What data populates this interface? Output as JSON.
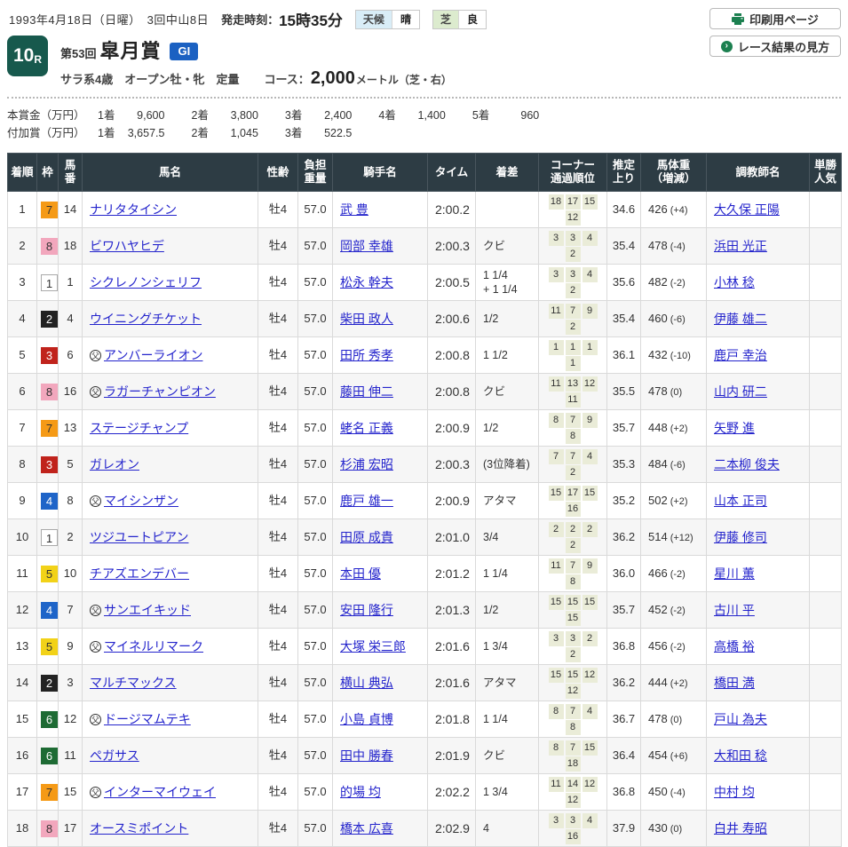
{
  "page": {
    "date_line": "1993年4月18日（日曜）　3回中山8日",
    "start_label": "発走時刻：",
    "start_time": "15時35分",
    "weather": {
      "label": "天候",
      "value": "晴"
    },
    "track": {
      "label": "芝",
      "value": "良"
    },
    "buttons": {
      "print": "印刷用ページ",
      "guide": "レース結果の見方"
    }
  },
  "race": {
    "number": "10",
    "number_suffix": "R",
    "edition": "第53回",
    "name": "皐月賞",
    "grade": "GI",
    "conditions": "サラ系4歳　オープン牡・牝　定量",
    "course_label": "コース：",
    "distance": "2,000",
    "course_detail": "メートル（芝・右）"
  },
  "prize": {
    "main_label": "本賞金（万円）",
    "main": [
      {
        "place": "1着",
        "amount": "9,600"
      },
      {
        "place": "2着",
        "amount": "3,800"
      },
      {
        "place": "3着",
        "amount": "2,400"
      },
      {
        "place": "4着",
        "amount": "1,400"
      },
      {
        "place": "5着",
        "amount": "960"
      }
    ],
    "added_label": "付加賞（万円）",
    "added": [
      {
        "place": "1着",
        "amount": "3,657.5"
      },
      {
        "place": "2着",
        "amount": "1,045"
      },
      {
        "place": "3着",
        "amount": "522.5"
      }
    ]
  },
  "frame_colors": {
    "1": {
      "bg": "#ffffff",
      "fg": "#333333",
      "border": "#aaaaaa"
    },
    "2": {
      "bg": "#222222",
      "fg": "#ffffff"
    },
    "3": {
      "bg": "#c0231c",
      "fg": "#ffffff"
    },
    "4": {
      "bg": "#1e64c8",
      "fg": "#ffffff"
    },
    "5": {
      "bg": "#f2d218",
      "fg": "#333333"
    },
    "6": {
      "bg": "#1e6b34",
      "fg": "#ffffff"
    },
    "7": {
      "bg": "#f59a16",
      "fg": "#333333"
    },
    "8": {
      "bg": "#f2a7bd",
      "fg": "#333333"
    }
  },
  "table": {
    "columns": [
      "着順",
      "枠",
      "馬\n番",
      "馬名",
      "性齢",
      "負担\n重量",
      "騎手名",
      "タイム",
      "着差",
      "コーナー\n通過順位",
      "推定\n上り",
      "馬体重\n（増減）",
      "調教師名",
      "単勝\n人気"
    ],
    "rows": [
      {
        "pos": "1",
        "frame": "7",
        "num": "14",
        "mark": "",
        "name": "ナリタタイシン",
        "sex_age": "牡4",
        "weight": "57.0",
        "jockey": "武 豊",
        "time": "2:00.2",
        "margin": "",
        "corners": [
          "18",
          "17",
          "15",
          "12"
        ],
        "last3f": "34.6",
        "body": "426",
        "diff": "(+4)",
        "trainer": "大久保 正陽",
        "pop": ""
      },
      {
        "pos": "2",
        "frame": "8",
        "num": "18",
        "mark": "",
        "name": "ビワハヤヒデ",
        "sex_age": "牡4",
        "weight": "57.0",
        "jockey": "岡部 幸雄",
        "time": "2:00.3",
        "margin": "クビ",
        "corners": [
          "3",
          "3",
          "4",
          "2"
        ],
        "last3f": "35.4",
        "body": "478",
        "diff": "(-4)",
        "trainer": "浜田 光正",
        "pop": ""
      },
      {
        "pos": "3",
        "frame": "1",
        "num": "1",
        "mark": "",
        "name": "シクレノンシェリフ",
        "sex_age": "牡4",
        "weight": "57.0",
        "jockey": "松永 幹夫",
        "time": "2:00.5",
        "margin": "1 1/4\n+ 1 1/4",
        "corners": [
          "3",
          "3",
          "4",
          "2"
        ],
        "last3f": "35.6",
        "body": "482",
        "diff": "(-2)",
        "trainer": "小林 稔",
        "pop": ""
      },
      {
        "pos": "4",
        "frame": "2",
        "num": "4",
        "mark": "",
        "name": "ウイニングチケット",
        "sex_age": "牡4",
        "weight": "57.0",
        "jockey": "柴田 政人",
        "time": "2:00.6",
        "margin": "1/2",
        "corners": [
          "11",
          "7",
          "9",
          "2"
        ],
        "last3f": "35.4",
        "body": "460",
        "diff": "(-6)",
        "trainer": "伊藤 雄二",
        "pop": ""
      },
      {
        "pos": "5",
        "frame": "3",
        "num": "6",
        "mark": "父",
        "name": "アンバーライオン",
        "sex_age": "牡4",
        "weight": "57.0",
        "jockey": "田所 秀孝",
        "time": "2:00.8",
        "margin": "1 1/2",
        "corners": [
          "1",
          "1",
          "1",
          "1"
        ],
        "last3f": "36.1",
        "body": "432",
        "diff": "(-10)",
        "trainer": "鹿戸 幸治",
        "pop": ""
      },
      {
        "pos": "6",
        "frame": "8",
        "num": "16",
        "mark": "父",
        "name": "ラガーチャンピオン",
        "sex_age": "牡4",
        "weight": "57.0",
        "jockey": "藤田 伸二",
        "time": "2:00.8",
        "margin": "クビ",
        "corners": [
          "11",
          "13",
          "12",
          "11"
        ],
        "last3f": "35.5",
        "body": "478",
        "diff": "(0)",
        "trainer": "山内 研二",
        "pop": ""
      },
      {
        "pos": "7",
        "frame": "7",
        "num": "13",
        "mark": "",
        "name": "ステージチャンプ",
        "sex_age": "牡4",
        "weight": "57.0",
        "jockey": "蛯名 正義",
        "time": "2:00.9",
        "margin": "1/2",
        "corners": [
          "8",
          "7",
          "9",
          "8"
        ],
        "last3f": "35.7",
        "body": "448",
        "diff": "(+2)",
        "trainer": "矢野 進",
        "pop": ""
      },
      {
        "pos": "8",
        "frame": "3",
        "num": "5",
        "mark": "",
        "name": "ガレオン",
        "sex_age": "牡4",
        "weight": "57.0",
        "jockey": "杉浦 宏昭",
        "time": "2:00.3",
        "margin": "(3位降着)",
        "corners": [
          "7",
          "7",
          "4",
          "2"
        ],
        "last3f": "35.3",
        "body": "484",
        "diff": "(-6)",
        "trainer": "二本柳 俊夫",
        "pop": ""
      },
      {
        "pos": "9",
        "frame": "4",
        "num": "8",
        "mark": "父",
        "name": "マイシンザン",
        "sex_age": "牡4",
        "weight": "57.0",
        "jockey": "鹿戸 雄一",
        "time": "2:00.9",
        "margin": "アタマ",
        "corners": [
          "15",
          "17",
          "15",
          "16"
        ],
        "last3f": "35.2",
        "body": "502",
        "diff": "(+2)",
        "trainer": "山本 正司",
        "pop": ""
      },
      {
        "pos": "10",
        "frame": "1",
        "num": "2",
        "mark": "",
        "name": "ツジユートピアン",
        "sex_age": "牡4",
        "weight": "57.0",
        "jockey": "田原 成貴",
        "time": "2:01.0",
        "margin": "3/4",
        "corners": [
          "2",
          "2",
          "2",
          "2"
        ],
        "last3f": "36.2",
        "body": "514",
        "diff": "(+12)",
        "trainer": "伊藤 修司",
        "pop": ""
      },
      {
        "pos": "11",
        "frame": "5",
        "num": "10",
        "mark": "",
        "name": "チアズエンデバー",
        "sex_age": "牡4",
        "weight": "57.0",
        "jockey": "本田 優",
        "time": "2:01.2",
        "margin": "1 1/4",
        "corners": [
          "11",
          "7",
          "9",
          "8"
        ],
        "last3f": "36.0",
        "body": "466",
        "diff": "(-2)",
        "trainer": "星川 薫",
        "pop": ""
      },
      {
        "pos": "12",
        "frame": "4",
        "num": "7",
        "mark": "父",
        "name": "サンエイキッド",
        "sex_age": "牡4",
        "weight": "57.0",
        "jockey": "安田 隆行",
        "time": "2:01.3",
        "margin": "1/2",
        "corners": [
          "15",
          "15",
          "15",
          "15"
        ],
        "last3f": "35.7",
        "body": "452",
        "diff": "(-2)",
        "trainer": "古川 平",
        "pop": ""
      },
      {
        "pos": "13",
        "frame": "5",
        "num": "9",
        "mark": "父",
        "name": "マイネルリマーク",
        "sex_age": "牡4",
        "weight": "57.0",
        "jockey": "大塚 栄三郎",
        "time": "2:01.6",
        "margin": "1 3/4",
        "corners": [
          "3",
          "3",
          "2",
          "2"
        ],
        "last3f": "36.8",
        "body": "456",
        "diff": "(-2)",
        "trainer": "高橋 裕",
        "pop": ""
      },
      {
        "pos": "14",
        "frame": "2",
        "num": "3",
        "mark": "",
        "name": "マルチマックス",
        "sex_age": "牡4",
        "weight": "57.0",
        "jockey": "横山 典弘",
        "time": "2:01.6",
        "margin": "アタマ",
        "corners": [
          "15",
          "15",
          "12",
          "12"
        ],
        "last3f": "36.2",
        "body": "444",
        "diff": "(+2)",
        "trainer": "橋田 満",
        "pop": ""
      },
      {
        "pos": "15",
        "frame": "6",
        "num": "12",
        "mark": "父",
        "name": "ドージマムテキ",
        "sex_age": "牡4",
        "weight": "57.0",
        "jockey": "小島 貞博",
        "time": "2:01.8",
        "margin": "1 1/4",
        "corners": [
          "8",
          "7",
          "4",
          "8"
        ],
        "last3f": "36.7",
        "body": "478",
        "diff": "(0)",
        "trainer": "戸山 為夫",
        "pop": ""
      },
      {
        "pos": "16",
        "frame": "6",
        "num": "11",
        "mark": "",
        "name": "ペガサス",
        "sex_age": "牡4",
        "weight": "57.0",
        "jockey": "田中 勝春",
        "time": "2:01.9",
        "margin": "クビ",
        "corners": [
          "8",
          "7",
          "15",
          "18"
        ],
        "last3f": "36.4",
        "body": "454",
        "diff": "(+6)",
        "trainer": "大和田 稔",
        "pop": ""
      },
      {
        "pos": "17",
        "frame": "7",
        "num": "15",
        "mark": "父",
        "name": "インターマイウェイ",
        "sex_age": "牡4",
        "weight": "57.0",
        "jockey": "的場 均",
        "time": "2:02.2",
        "margin": "1 3/4",
        "corners": [
          "11",
          "14",
          "12",
          "12"
        ],
        "last3f": "36.8",
        "body": "450",
        "diff": "(-4)",
        "trainer": "中村 均",
        "pop": ""
      },
      {
        "pos": "18",
        "frame": "8",
        "num": "17",
        "mark": "",
        "name": "オースミポイント",
        "sex_age": "牡4",
        "weight": "57.0",
        "jockey": "橋本 広喜",
        "time": "2:02.9",
        "margin": "4",
        "corners": [
          "3",
          "3",
          "4",
          "16"
        ],
        "last3f": "37.9",
        "body": "430",
        "diff": "(0)",
        "trainer": "白井 寿昭",
        "pop": ""
      }
    ]
  }
}
